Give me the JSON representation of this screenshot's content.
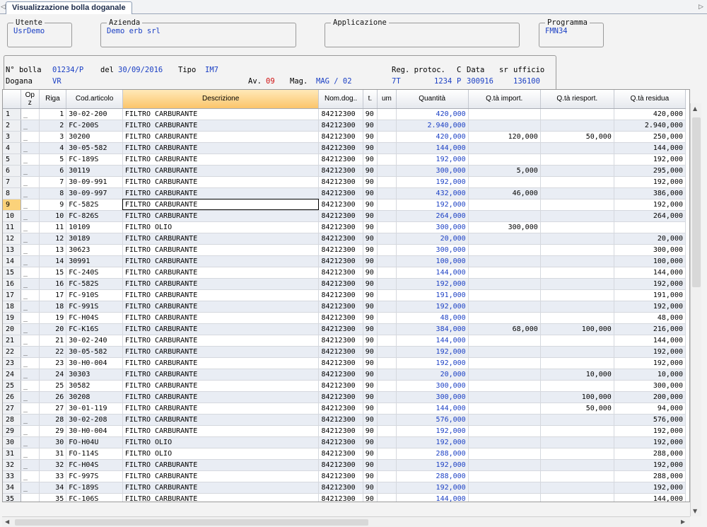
{
  "tab": {
    "title": "Visualizzazione bolla doganale"
  },
  "boxes": {
    "utente": {
      "legend": "Utente",
      "value": "UsrDemo"
    },
    "azienda": {
      "legend": "Azienda",
      "value": "Demo erb srl"
    },
    "applicazione": {
      "legend": "Applicazione",
      "value": ""
    },
    "programma": {
      "legend": "Programma",
      "value": "FMN34"
    }
  },
  "header": {
    "bolla_label": "N° bolla",
    "bolla_value": "01234/P",
    "del_label": "del",
    "del_value": "30/09/2016",
    "tipo_label": "Tipo",
    "tipo_value": "IM7",
    "regprot_label": "Reg. protoc.",
    "c_label": "C",
    "data_label": "Data",
    "sr_label": "sr",
    "ufficio_label": "ufficio",
    "dogana_label": "Dogana",
    "dogana_value": "VR",
    "av_label": "Av.",
    "av_value": "09",
    "mag_label": "Mag.",
    "mag_value": "MAG / 02",
    "regprot_value": "7T",
    "protocol_value": "1234",
    "c_value": "P",
    "data_value": "300916",
    "ufficio_value": "136100"
  },
  "columns": [
    "",
    "Op z",
    "Riga",
    "Cod.articolo",
    "Descrizione",
    "Nom.dog..",
    "t.",
    "um",
    "Quantità",
    "Q.tà import.",
    "Q.tà riesport.",
    "Q.tà residua"
  ],
  "rows": [
    [
      "1",
      "_",
      "1",
      "30-02-200",
      "FILTRO CARBURANTE",
      "84212300",
      "90",
      "",
      "420,000",
      "",
      "",
      "420,000"
    ],
    [
      "2",
      "_",
      "2",
      "FC-200S",
      "FILTRO CARBURANTE",
      "84212300",
      "90",
      "",
      "2.940,000",
      "",
      "",
      "2.940,000"
    ],
    [
      "3",
      "_",
      "3",
      "30200",
      "FILTRO CARBURANTE",
      "84212300",
      "90",
      "",
      "420,000",
      "120,000",
      "50,000",
      "250,000"
    ],
    [
      "4",
      "_",
      "4",
      "30-05-582",
      "FILTRO CARBURANTE",
      "84212300",
      "90",
      "",
      "144,000",
      "",
      "",
      "144,000"
    ],
    [
      "5",
      "_",
      "5",
      "FC-189S",
      "FILTRO CARBURANTE",
      "84212300",
      "90",
      "",
      "192,000",
      "",
      "",
      "192,000"
    ],
    [
      "6",
      "_",
      "6",
      "30119",
      "FILTRO CARBURANTE",
      "84212300",
      "90",
      "",
      "300,000",
      "5,000",
      "",
      "295,000"
    ],
    [
      "7",
      "_",
      "7",
      "30-09-991",
      "FILTRO CARBURANTE",
      "84212300",
      "90",
      "",
      "192,000",
      "",
      "",
      "192,000"
    ],
    [
      "8",
      "_",
      "8",
      "30-09-997",
      "FILTRO CARBURANTE",
      "84212300",
      "90",
      "",
      "432,000",
      "46,000",
      "",
      "386,000"
    ],
    [
      "9",
      "_",
      "9",
      "FC-582S",
      "FILTRO CARBURANTE",
      "84212300",
      "90",
      "",
      "192,000",
      "",
      "",
      "192,000"
    ],
    [
      "10",
      "_",
      "10",
      "FC-826S",
      "FILTRO CARBURANTE",
      "84212300",
      "90",
      "",
      "264,000",
      "",
      "",
      "264,000"
    ],
    [
      "11",
      "_",
      "11",
      "10109",
      "FILTRO OLIO",
      "84212300",
      "90",
      "",
      "300,000",
      "300,000",
      "",
      ""
    ],
    [
      "12",
      "_",
      "12",
      "30189",
      "FILTRO CARBURANTE",
      "84212300",
      "90",
      "",
      "20,000",
      "",
      "",
      "20,000"
    ],
    [
      "13",
      "_",
      "13",
      "30623",
      "FILTRO CARBURANTE",
      "84212300",
      "90",
      "",
      "300,000",
      "",
      "",
      "300,000"
    ],
    [
      "14",
      "_",
      "14",
      "30991",
      "FILTRO CARBURANTE",
      "84212300",
      "90",
      "",
      "100,000",
      "",
      "",
      "100,000"
    ],
    [
      "15",
      "_",
      "15",
      "FC-240S",
      "FILTRO CARBURANTE",
      "84212300",
      "90",
      "",
      "144,000",
      "",
      "",
      "144,000"
    ],
    [
      "16",
      "_",
      "16",
      "FC-582S",
      "FILTRO CARBURANTE",
      "84212300",
      "90",
      "",
      "192,000",
      "",
      "",
      "192,000"
    ],
    [
      "17",
      "_",
      "17",
      "FC-910S",
      "FILTRO CARBURANTE",
      "84212300",
      "90",
      "",
      "191,000",
      "",
      "",
      "191,000"
    ],
    [
      "18",
      "_",
      "18",
      "FC-991S",
      "FILTRO CARBURANTE",
      "84212300",
      "90",
      "",
      "192,000",
      "",
      "",
      "192,000"
    ],
    [
      "19",
      "_",
      "19",
      "FC-H04S",
      "FILTRO CARBURANTE",
      "84212300",
      "90",
      "",
      "48,000",
      "",
      "",
      "48,000"
    ],
    [
      "20",
      "_",
      "20",
      "FC-K16S",
      "FILTRO CARBURANTE",
      "84212300",
      "90",
      "",
      "384,000",
      "68,000",
      "100,000",
      "216,000"
    ],
    [
      "21",
      "_",
      "21",
      "30-02-240",
      "FILTRO CARBURANTE",
      "84212300",
      "90",
      "",
      "144,000",
      "",
      "",
      "144,000"
    ],
    [
      "22",
      "_",
      "22",
      "30-05-582",
      "FILTRO CARBURANTE",
      "84212300",
      "90",
      "",
      "192,000",
      "",
      "",
      "192,000"
    ],
    [
      "23",
      "_",
      "23",
      "30-H0-004",
      "FILTRO CARBURANTE",
      "84212300",
      "90",
      "",
      "192,000",
      "",
      "",
      "192,000"
    ],
    [
      "24",
      "_",
      "24",
      "30303",
      "FILTRO CARBURANTE",
      "84212300",
      "90",
      "",
      "20,000",
      "",
      "10,000",
      "10,000"
    ],
    [
      "25",
      "_",
      "25",
      "30582",
      "FILTRO CARBURANTE",
      "84212300",
      "90",
      "",
      "300,000",
      "",
      "",
      "300,000"
    ],
    [
      "26",
      "_",
      "26",
      "30208",
      "FILTRO CARBURANTE",
      "84212300",
      "90",
      "",
      "300,000",
      "",
      "100,000",
      "200,000"
    ],
    [
      "27",
      "_",
      "27",
      "30-01-119",
      "FILTRO CARBURANTE",
      "84212300",
      "90",
      "",
      "144,000",
      "",
      "50,000",
      "94,000"
    ],
    [
      "28",
      "_",
      "28",
      "30-02-208",
      "FILTRO CARBURANTE",
      "84212300",
      "90",
      "",
      "576,000",
      "",
      "",
      "576,000"
    ],
    [
      "29",
      "_",
      "29",
      "30-H0-004",
      "FILTRO CARBURANTE",
      "84212300",
      "90",
      "",
      "192,000",
      "",
      "",
      "192,000"
    ],
    [
      "30",
      "_",
      "30",
      "FO-H04U",
      "FILTRO OLIO",
      "84212300",
      "90",
      "",
      "192,000",
      "",
      "",
      "192,000"
    ],
    [
      "31",
      "_",
      "31",
      "FO-114S",
      "FILTRO OLIO",
      "84212300",
      "90",
      "",
      "288,000",
      "",
      "",
      "288,000"
    ],
    [
      "32",
      "_",
      "32",
      "FC-H04S",
      "FILTRO CARBURANTE",
      "84212300",
      "90",
      "",
      "192,000",
      "",
      "",
      "192,000"
    ],
    [
      "33",
      "_",
      "33",
      "FC-997S",
      "FILTRO CARBURANTE",
      "84212300",
      "90",
      "",
      "288,000",
      "",
      "",
      "288,000"
    ],
    [
      "34",
      "_",
      "34",
      "FC-189S",
      "FILTRO CARBURANTE",
      "84212300",
      "90",
      "",
      "192,000",
      "",
      "",
      "192,000"
    ],
    [
      "35",
      "_",
      "35",
      "FC-106S",
      "FILTRO CARBURANTE",
      "84212300",
      "90",
      "",
      "144,000",
      "",
      "",
      "144,000"
    ]
  ],
  "current_row": "9",
  "colors": {
    "value_blue": "#1a3fc4",
    "value_red": "#d01010",
    "selected_header": "#fbc56a"
  },
  "icons": {
    "tab_left": "triangle-left-icon",
    "tab_right": "triangle-right-icon",
    "scroll_up": "scroll-up-arrow-icon",
    "scroll_down": "scroll-down-arrow-icon",
    "scroll_left": "scroll-left-arrow-icon",
    "scroll_right": "scroll-right-arrow-icon"
  }
}
